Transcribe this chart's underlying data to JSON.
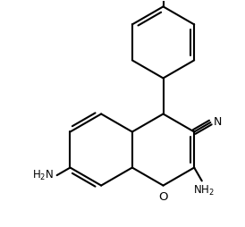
{
  "background_color": "#ffffff",
  "line_color": "#000000",
  "line_width": 1.5,
  "font_size": 8.5,
  "figsize": [
    2.74,
    2.54
  ],
  "dpi": 100
}
